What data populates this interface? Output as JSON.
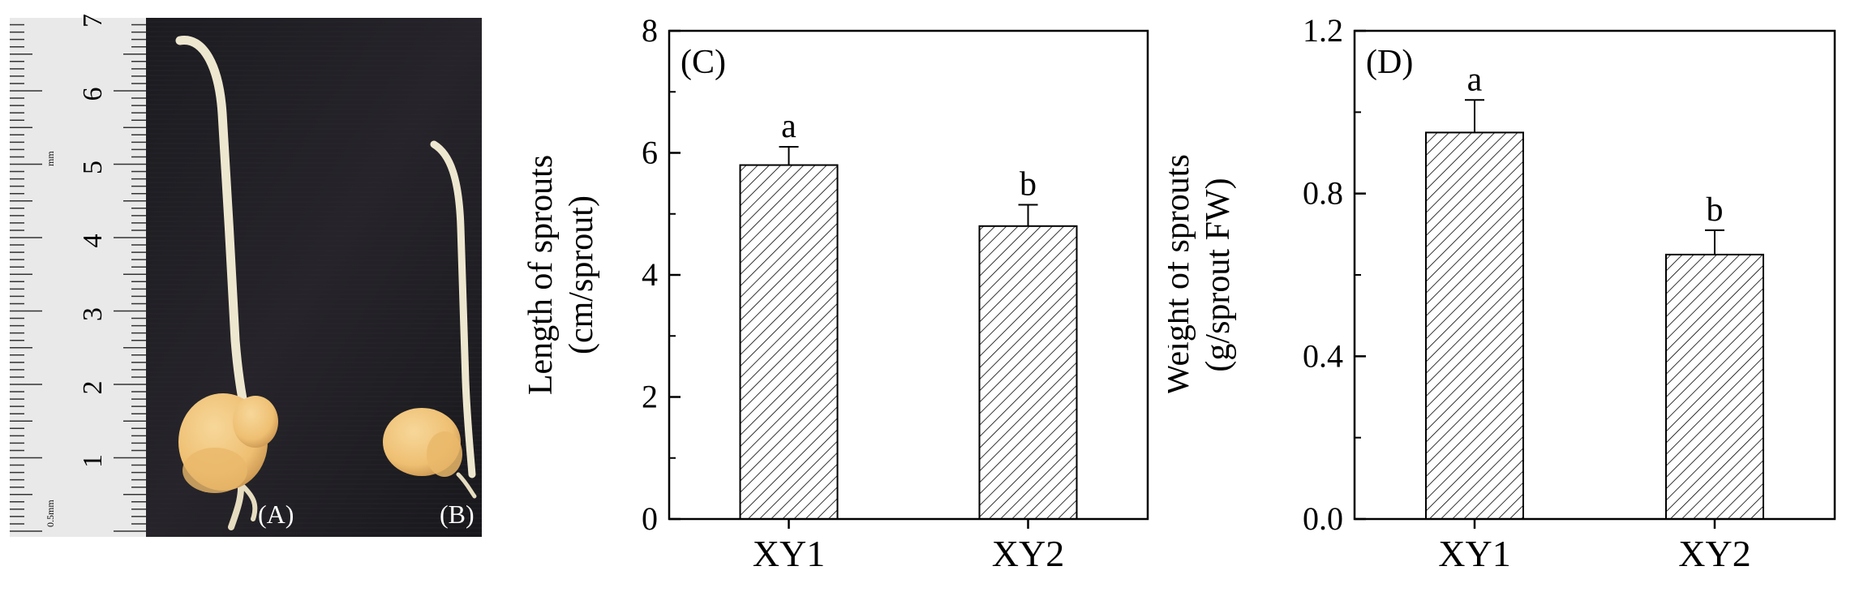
{
  "photo": {
    "ruler_labels": [
      "7",
      "6",
      "5",
      "4",
      "3",
      "2",
      "1"
    ],
    "ruler_unit_top": "mm",
    "ruler_unit_bottom": "0.5mm",
    "label_a": "(A)",
    "label_b": "(B)",
    "colors": {
      "background": "#1c1b20",
      "sprout": "#eee7cf",
      "tuber": "#efc27a",
      "ruler": "#e9e9e9"
    }
  },
  "chart_data": [
    {
      "type": "bar",
      "panel_label": "(C)",
      "categories": [
        "XY1",
        "XY2"
      ],
      "values": [
        5.8,
        4.8
      ],
      "errors": [
        0.3,
        0.35
      ],
      "significance": [
        "a",
        "b"
      ],
      "ylabel_lines": [
        "Length of sprouts",
        "(cm/sprout)"
      ],
      "ylim": [
        0,
        8
      ],
      "yticks": [
        0,
        2,
        4,
        6,
        8
      ],
      "ytick_labels": [
        "0",
        "2",
        "4",
        "6",
        "8"
      ],
      "fill": "hatched",
      "grid": false
    },
    {
      "type": "bar",
      "panel_label": "(D)",
      "categories": [
        "XY1",
        "XY2"
      ],
      "values": [
        0.95,
        0.65
      ],
      "errors": [
        0.08,
        0.06
      ],
      "significance": [
        "a",
        "b"
      ],
      "ylabel_lines": [
        "Weight of sprouts",
        "(g/sprout FW)"
      ],
      "ylim": [
        0,
        1.2
      ],
      "yticks": [
        0,
        0.4,
        0.8,
        1.2
      ],
      "ytick_labels": [
        "0.0",
        "0.4",
        "0.8",
        "1.2"
      ],
      "fill": "hatched",
      "grid": false
    }
  ]
}
